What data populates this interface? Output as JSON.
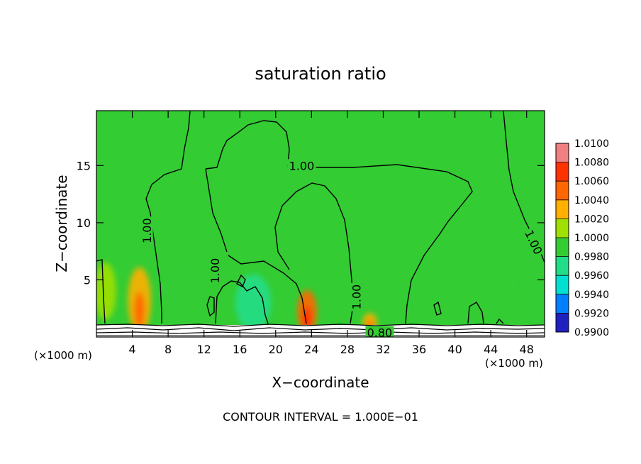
{
  "chart_data": {
    "type": "heatmap",
    "title": "saturation ratio",
    "xlabel": "X−coordinate",
    "ylabel": "Z−coordinate",
    "x_unit_left": "(×1000 m)",
    "x_unit_right": "(×1000 m)",
    "footer": "CONTOUR INTERVAL = 1.000E−01",
    "xlim": [
      0,
      50
    ],
    "ylim": [
      0,
      19.8
    ],
    "x_ticks": [
      4,
      8,
      12,
      16,
      20,
      24,
      28,
      32,
      36,
      40,
      44,
      48
    ],
    "x_tick_labels": [
      "4",
      "8",
      "12",
      "16",
      "20",
      "24",
      "28",
      "32",
      "36",
      "40",
      "44",
      "48"
    ],
    "y_ticks": [
      5,
      10,
      15
    ],
    "y_tick_labels": [
      "5",
      "10",
      "15"
    ],
    "colorbar": {
      "levels": [
        "1.0100",
        "1.0080",
        "1.0060",
        "1.0040",
        "1.0020",
        "1.0000",
        "0.9980",
        "0.9960",
        "0.9940",
        "0.9920",
        "0.9900"
      ],
      "colors": [
        "#f08080",
        "#ff3300",
        "#ff6600",
        "#ffb000",
        "#a0e000",
        "#33cc33",
        "#22dd88",
        "#00e0d0",
        "#0080ff",
        "#2020c0",
        "#7020a0"
      ]
    },
    "background_color": "#33cc33",
    "contour_labels": [
      {
        "text": "1.00",
        "x": 22.9,
        "z": 15.0,
        "rotate": 0
      },
      {
        "text": "1.00",
        "x": 5.6,
        "z": 9.3,
        "rotate": -90
      },
      {
        "text": "1.00",
        "x": 13.2,
        "z": 5.8,
        "rotate": -90
      },
      {
        "text": "1.00",
        "x": 29.0,
        "z": 3.5,
        "rotate": -90
      },
      {
        "text": "1.00",
        "x": 48.8,
        "z": 8.3,
        "rotate": 65
      },
      {
        "text": "0.80",
        "x": 31.6,
        "z": 0.4,
        "rotate": 0
      }
    ],
    "anomalies": [
      {
        "x": 4.8,
        "z": 3.2,
        "sx": 1.3,
        "sz": 2.9,
        "value": 1.004
      },
      {
        "x": 23.5,
        "z": 2.2,
        "sx": 1.1,
        "sz": 1.9,
        "value": 1.006
      },
      {
        "x": 30.5,
        "z": 1.3,
        "sx": 0.8,
        "sz": 0.8,
        "value": 1.004
      },
      {
        "x": 9.8,
        "z": 3.5,
        "sx": 2.2,
        "sz": 3.0,
        "value": 0.9984
      },
      {
        "x": 17.5,
        "z": 3.0,
        "sx": 2.0,
        "sz": 2.5,
        "value": 0.9966
      },
      {
        "x": 49.0,
        "z": 4.5,
        "sx": 1.5,
        "sz": 3.0,
        "value": 0.9984
      },
      {
        "x": 1.0,
        "z": 4.0,
        "sx": 1.2,
        "sz": 2.5,
        "value": 1.002
      }
    ]
  }
}
